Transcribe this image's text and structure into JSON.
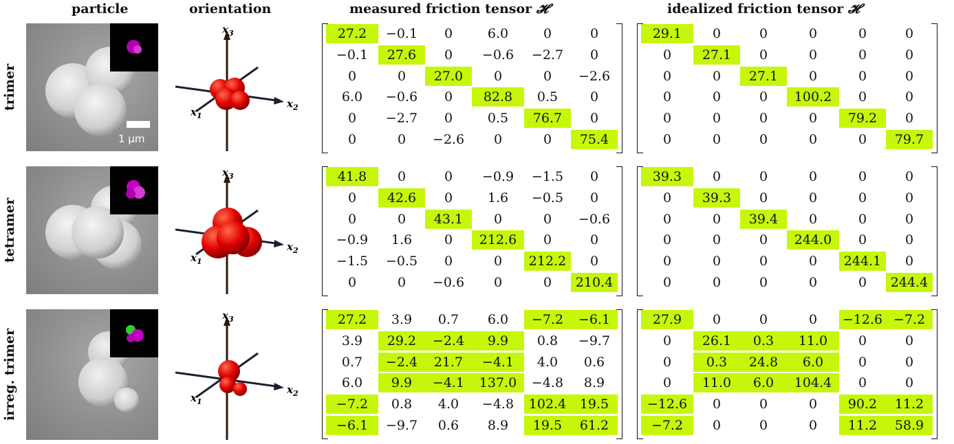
{
  "headers": {
    "particle": "particle",
    "orientation": "orientation",
    "measured": "measured friction tensor",
    "idealized": "idealized friction tensor",
    "tensor_symbol": "𝓗"
  },
  "axis_labels": {
    "x1": "x",
    "x2": "x",
    "x3": "x",
    "sub1": "1",
    "sub2": "2",
    "sub3": "3"
  },
  "scale_label": "1 µm",
  "highlight_color": "#c6f70a",
  "rows": [
    {
      "label": "trimer",
      "measured": [
        [
          "27.2",
          "−0.1",
          "0",
          "6.0",
          "0",
          "0"
        ],
        [
          "−0.1",
          "27.6",
          "0",
          "−0.6",
          "−2.7",
          "0"
        ],
        [
          "0",
          "0",
          "27.0",
          "0",
          "0",
          "−2.6"
        ],
        [
          "6.0",
          "−0.6",
          "0",
          "82.8",
          "0.5",
          "0"
        ],
        [
          "0",
          "−2.7",
          "0",
          "0.5",
          "76.7",
          "0"
        ],
        [
          "0",
          "0",
          "−2.6",
          "0",
          "0",
          "75.4"
        ]
      ],
      "measured_hl": [
        [
          0,
          0
        ],
        [
          1,
          1
        ],
        [
          2,
          2
        ],
        [
          3,
          3
        ],
        [
          4,
          4
        ],
        [
          5,
          5
        ]
      ],
      "idealized": [
        [
          "29.1",
          "0",
          "0",
          "0",
          "0",
          "0"
        ],
        [
          "0",
          "27.1",
          "0",
          "0",
          "0",
          "0"
        ],
        [
          "0",
          "0",
          "27.1",
          "0",
          "0",
          "0"
        ],
        [
          "0",
          "0",
          "0",
          "100.2",
          "0",
          "0"
        ],
        [
          "0",
          "0",
          "0",
          "0",
          "79.2",
          "0"
        ],
        [
          "0",
          "0",
          "0",
          "0",
          "0",
          "79.7"
        ]
      ],
      "idealized_hl": [
        [
          0,
          0
        ],
        [
          1,
          1
        ],
        [
          2,
          2
        ],
        [
          3,
          3
        ],
        [
          4,
          4
        ],
        [
          5,
          5
        ]
      ]
    },
    {
      "label": "tetramer",
      "measured": [
        [
          "41.8",
          "0",
          "0",
          "−0.9",
          "−1.5",
          "0"
        ],
        [
          "0",
          "42.6",
          "0",
          "1.6",
          "−0.5",
          "0"
        ],
        [
          "0",
          "0",
          "43.1",
          "0",
          "0",
          "−0.6"
        ],
        [
          "−0.9",
          "1.6",
          "0",
          "212.6",
          "0",
          "0"
        ],
        [
          "−1.5",
          "−0.5",
          "0",
          "0",
          "212.2",
          "0"
        ],
        [
          "0",
          "0",
          "−0.6",
          "0",
          "0",
          "210.4"
        ]
      ],
      "measured_hl": [
        [
          0,
          0
        ],
        [
          1,
          1
        ],
        [
          2,
          2
        ],
        [
          3,
          3
        ],
        [
          4,
          4
        ],
        [
          5,
          5
        ]
      ],
      "idealized": [
        [
          "39.3",
          "0",
          "0",
          "0",
          "0",
          "0"
        ],
        [
          "0",
          "39.3",
          "0",
          "0",
          "0",
          "0"
        ],
        [
          "0",
          "0",
          "39.4",
          "0",
          "0",
          "0"
        ],
        [
          "0",
          "0",
          "0",
          "244.0",
          "0",
          "0"
        ],
        [
          "0",
          "0",
          "0",
          "0",
          "244.1",
          "0"
        ],
        [
          "0",
          "0",
          "0",
          "0",
          "0",
          "244.4"
        ]
      ],
      "idealized_hl": [
        [
          0,
          0
        ],
        [
          1,
          1
        ],
        [
          2,
          2
        ],
        [
          3,
          3
        ],
        [
          4,
          4
        ],
        [
          5,
          5
        ]
      ]
    },
    {
      "label": "irreg. trimer",
      "measured": [
        [
          "27.2",
          "3.9",
          "0.7",
          "6.0",
          "−7.2",
          "−6.1"
        ],
        [
          "3.9",
          "29.2",
          "−2.4",
          "9.9",
          "0.8",
          "−9.7"
        ],
        [
          "0.7",
          "−2.4",
          "21.7",
          "−4.1",
          "4.0",
          "0.6"
        ],
        [
          "6.0",
          "9.9",
          "−4.1",
          "137.0",
          "−4.8",
          "8.9"
        ],
        [
          "−7.2",
          "0.8",
          "4.0",
          "−4.8",
          "102.4",
          "19.5"
        ],
        [
          "−6.1",
          "−9.7",
          "0.6",
          "8.9",
          "19.5",
          "61.2"
        ]
      ],
      "measured_hl": [
        [
          0,
          0
        ],
        [
          0,
          4
        ],
        [
          0,
          5
        ],
        [
          1,
          1
        ],
        [
          1,
          2
        ],
        [
          1,
          3
        ],
        [
          2,
          1
        ],
        [
          2,
          2
        ],
        [
          2,
          3
        ],
        [
          3,
          1
        ],
        [
          3,
          2
        ],
        [
          3,
          3
        ],
        [
          4,
          0
        ],
        [
          4,
          4
        ],
        [
          4,
          5
        ],
        [
          5,
          0
        ],
        [
          5,
          4
        ],
        [
          5,
          5
        ]
      ],
      "idealized": [
        [
          "27.9",
          "0",
          "0",
          "0",
          "−12.6",
          "−7.2"
        ],
        [
          "0",
          "26.1",
          "0.3",
          "11.0",
          "0",
          "0"
        ],
        [
          "0",
          "0.3",
          "24.8",
          "6.0",
          "0",
          "0"
        ],
        [
          "0",
          "11.0",
          "6.0",
          "104.4",
          "0",
          "0"
        ],
        [
          "−12.6",
          "0",
          "0",
          "0",
          "90.2",
          "11.2"
        ],
        [
          "−7.2",
          "0",
          "0",
          "0",
          "11.2",
          "58.9"
        ]
      ],
      "idealized_hl": [
        [
          0,
          0
        ],
        [
          0,
          4
        ],
        [
          0,
          5
        ],
        [
          1,
          1
        ],
        [
          1,
          2
        ],
        [
          1,
          3
        ],
        [
          2,
          1
        ],
        [
          2,
          2
        ],
        [
          2,
          3
        ],
        [
          3,
          1
        ],
        [
          3,
          2
        ],
        [
          3,
          3
        ],
        [
          4,
          0
        ],
        [
          4,
          4
        ],
        [
          4,
          5
        ],
        [
          5,
          0
        ],
        [
          5,
          4
        ],
        [
          5,
          5
        ]
      ]
    }
  ]
}
